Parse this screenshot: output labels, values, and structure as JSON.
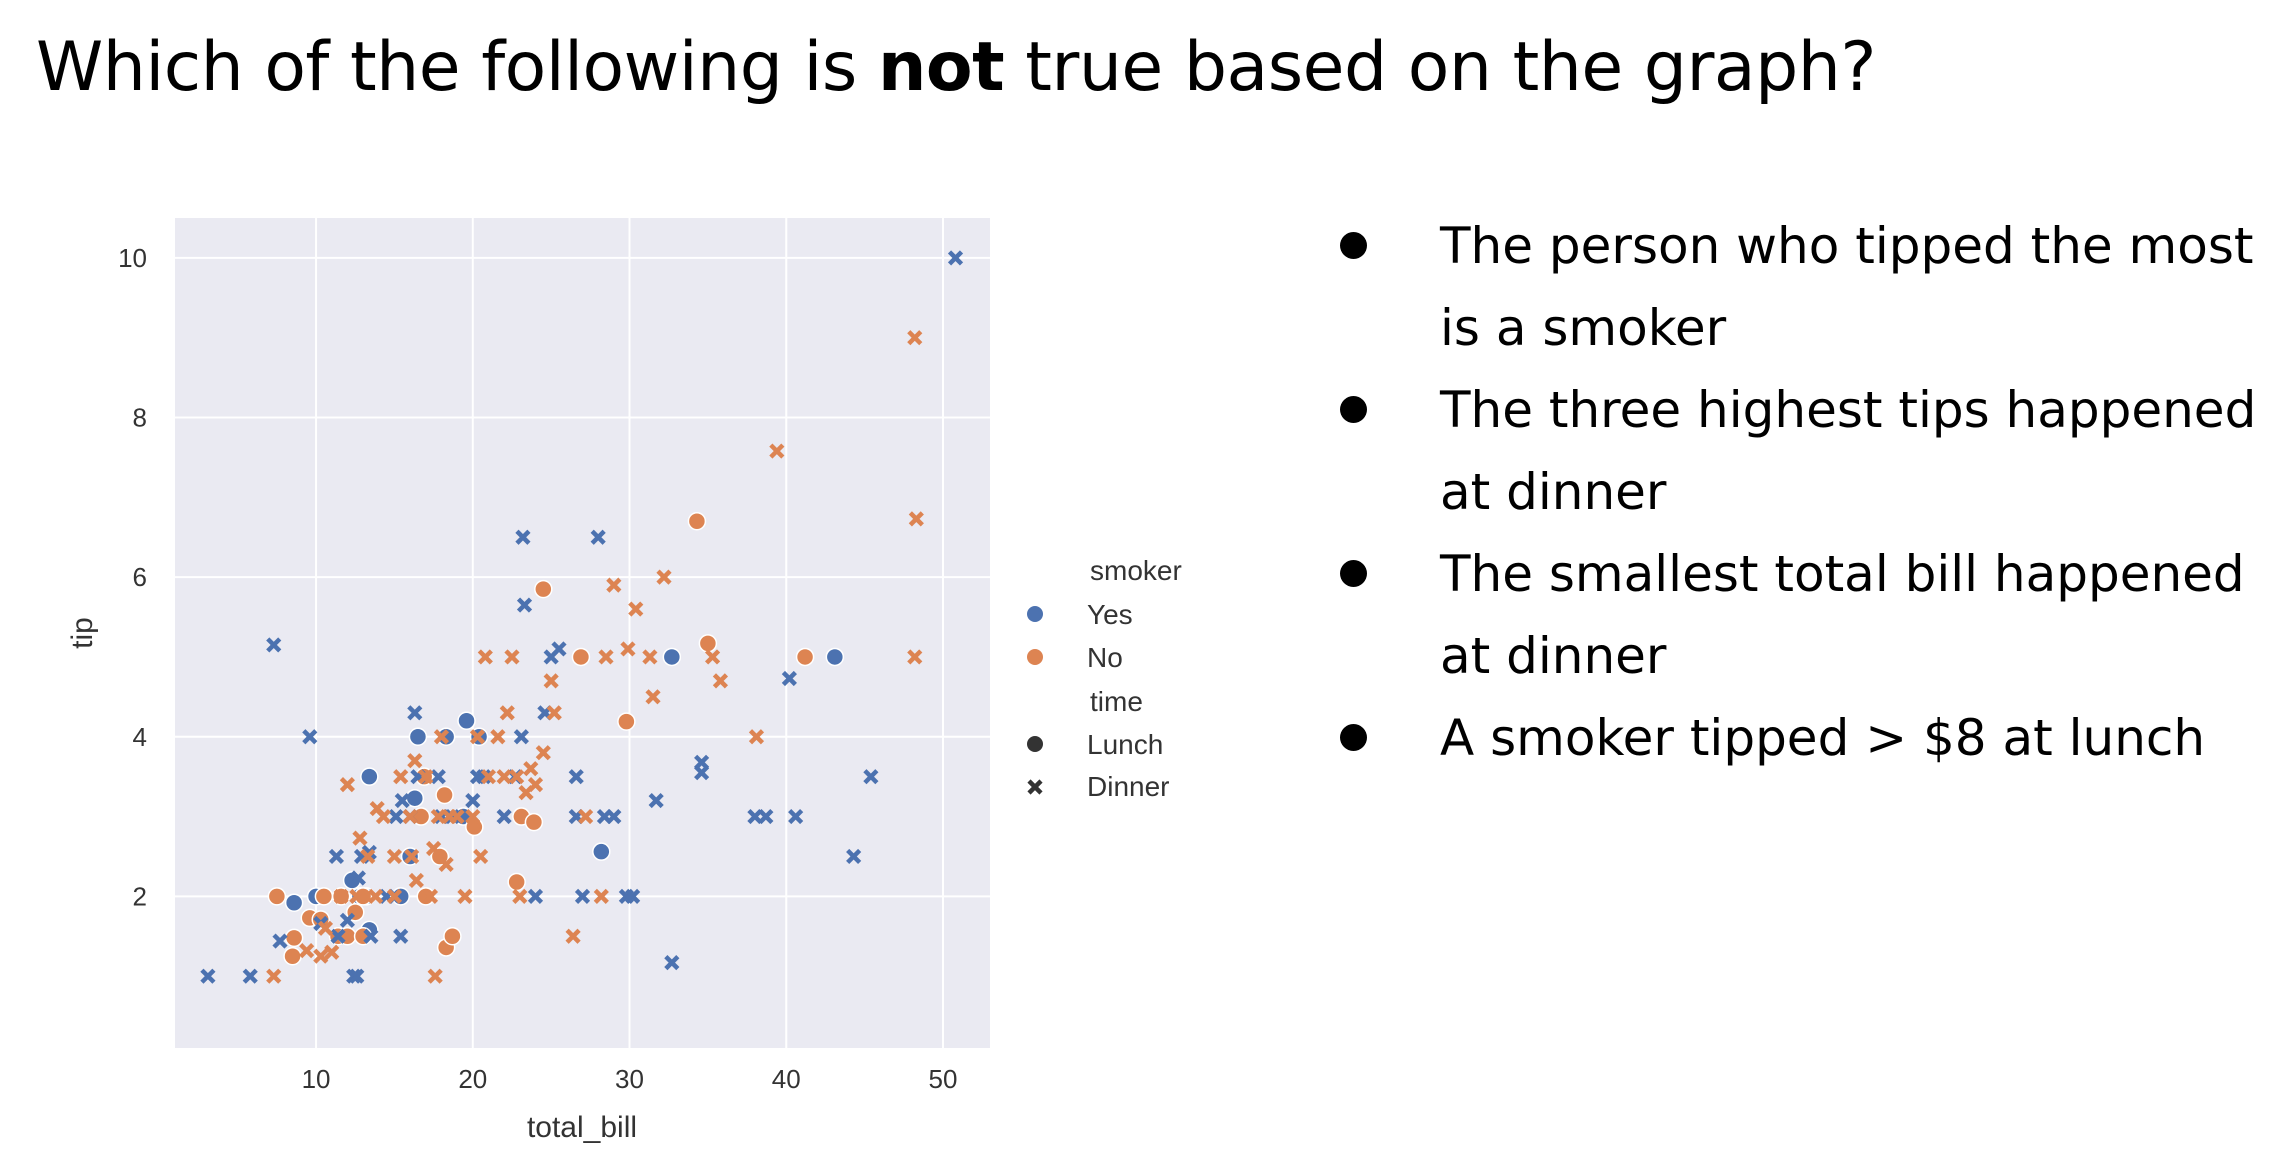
{
  "question": {
    "prefix": "Which of the following is ",
    "emphasis": "not",
    "suffix": " true based on the graph?"
  },
  "options": [
    "The person who tipped the most is a smoker",
    "The three highest tips happened at dinner",
    "The smallest total bill happened at dinner",
    "A smoker tipped > $8 at lunch"
  ],
  "colors": {
    "smoker_yes": "#4c72b0",
    "smoker_no": "#dd8452",
    "plot_bg": "#eaeaf2",
    "grid": "#ffffff"
  },
  "chart_data": {
    "type": "scatter",
    "xlabel": "total_bill",
    "ylabel": "tip",
    "xlim": [
      1,
      53
    ],
    "ylim": [
      0.1,
      10.5
    ],
    "xticks": [
      10,
      20,
      30,
      40,
      50
    ],
    "yticks": [
      2,
      4,
      6,
      8,
      10
    ],
    "grid": true,
    "legend": {
      "placement": "right",
      "hue_title": "smoker",
      "hue_items": [
        {
          "label": "Yes",
          "key": "Yes"
        },
        {
          "label": "No",
          "key": "No"
        }
      ],
      "style_title": "time",
      "style_items": [
        {
          "label": "Lunch",
          "key": "Lunch"
        },
        {
          "label": "Dinner",
          "key": "Dinner"
        }
      ]
    },
    "series": [
      {
        "smoker": "Yes",
        "time": "Lunch",
        "points": [
          [
            8.6,
            1.92
          ],
          [
            10.0,
            2.0
          ],
          [
            12.3,
            2.2
          ],
          [
            12.8,
            2.0
          ],
          [
            13.2,
            2.0
          ],
          [
            13.4,
            3.5
          ],
          [
            13.4,
            1.58
          ],
          [
            15.4,
            2.0
          ],
          [
            16.0,
            2.5
          ],
          [
            16.3,
            3.23
          ],
          [
            16.5,
            4.0
          ],
          [
            18.3,
            4.0
          ],
          [
            19.6,
            4.2
          ],
          [
            19.4,
            3.0
          ],
          [
            20.4,
            4.0
          ],
          [
            28.2,
            2.56
          ],
          [
            32.7,
            5.0
          ],
          [
            43.1,
            5.0
          ]
        ]
      },
      {
        "smoker": "No",
        "time": "Lunch",
        "points": [
          [
            7.5,
            2.0
          ],
          [
            8.5,
            1.25
          ],
          [
            8.6,
            1.48
          ],
          [
            9.6,
            1.73
          ],
          [
            10.3,
            1.71
          ],
          [
            10.5,
            2.0
          ],
          [
            11.4,
            1.5
          ],
          [
            11.6,
            2.0
          ],
          [
            12.0,
            1.5
          ],
          [
            12.5,
            1.8
          ],
          [
            13.0,
            2.0
          ],
          [
            13.0,
            1.5
          ],
          [
            16.9,
            3.5
          ],
          [
            17.0,
            2.0
          ],
          [
            18.2,
            3.27
          ],
          [
            18.3,
            1.36
          ],
          [
            18.7,
            1.5
          ],
          [
            20.1,
            2.87
          ],
          [
            24.5,
            5.85
          ],
          [
            26.9,
            5.0
          ],
          [
            29.8,
            4.19
          ],
          [
            34.3,
            6.7
          ],
          [
            35.0,
            5.17
          ],
          [
            41.2,
            5.0
          ],
          [
            17.9,
            2.5
          ],
          [
            22.8,
            2.18
          ],
          [
            23.1,
            3.0
          ],
          [
            23.9,
            2.93
          ],
          [
            16.7,
            3.0
          ]
        ]
      },
      {
        "smoker": "Yes",
        "time": "Dinner",
        "points": [
          [
            3.1,
            1.0
          ],
          [
            5.8,
            1.0
          ],
          [
            7.3,
            5.15
          ],
          [
            7.7,
            1.44
          ],
          [
            9.6,
            4.0
          ],
          [
            10.3,
            1.66
          ],
          [
            11.3,
            2.5
          ],
          [
            11.4,
            1.5
          ],
          [
            12.4,
            1.0
          ],
          [
            12.6,
            1.0
          ],
          [
            12.7,
            2.23
          ],
          [
            12.9,
            2.5
          ],
          [
            13.4,
            2.55
          ],
          [
            13.5,
            1.5
          ],
          [
            14.5,
            2.0
          ],
          [
            15.1,
            3.0
          ],
          [
            15.4,
            1.5
          ],
          [
            15.5,
            3.2
          ],
          [
            16.0,
            3.0
          ],
          [
            16.3,
            4.3
          ],
          [
            16.5,
            3.5
          ],
          [
            17.8,
            3.5
          ],
          [
            18.0,
            3.0
          ],
          [
            18.7,
            3.0
          ],
          [
            20.3,
            3.5
          ],
          [
            20.7,
            3.5
          ],
          [
            22.7,
            3.5
          ],
          [
            23.2,
            6.5
          ],
          [
            23.3,
            5.65
          ],
          [
            24.0,
            2.0
          ],
          [
            24.6,
            4.3
          ],
          [
            25.0,
            5.0
          ],
          [
            25.5,
            5.1
          ],
          [
            26.6,
            3.5
          ],
          [
            26.6,
            3.0
          ],
          [
            27.0,
            2.0
          ],
          [
            28.0,
            6.5
          ],
          [
            28.4,
            3.0
          ],
          [
            29.0,
            3.0
          ],
          [
            29.8,
            2.0
          ],
          [
            30.2,
            2.0
          ],
          [
            31.7,
            3.2
          ],
          [
            32.7,
            1.17
          ],
          [
            34.6,
            3.55
          ],
          [
            34.6,
            3.68
          ],
          [
            38.0,
            3.0
          ],
          [
            38.7,
            3.0
          ],
          [
            40.2,
            4.73
          ],
          [
            40.6,
            3.0
          ],
          [
            44.3,
            2.5
          ],
          [
            45.4,
            3.5
          ],
          [
            50.8,
            10.0
          ],
          [
            12.0,
            1.7
          ],
          [
            22.0,
            3.0
          ],
          [
            23.1,
            4.0
          ],
          [
            20.0,
            3.2
          ]
        ]
      },
      {
        "smoker": "No",
        "time": "Dinner",
        "points": [
          [
            7.3,
            1.0
          ],
          [
            9.4,
            1.32
          ],
          [
            10.3,
            1.25
          ],
          [
            10.6,
            1.6
          ],
          [
            11.0,
            1.3
          ],
          [
            11.6,
            2.0
          ],
          [
            12.0,
            3.4
          ],
          [
            12.6,
            2.0
          ],
          [
            13.3,
            2.5
          ],
          [
            13.8,
            2.0
          ],
          [
            14.3,
            3.0
          ],
          [
            15.0,
            2.0
          ],
          [
            15.4,
            3.5
          ],
          [
            16.0,
            3.0
          ],
          [
            16.3,
            3.7
          ],
          [
            16.4,
            2.2
          ],
          [
            17.0,
            3.5
          ],
          [
            17.3,
            2.0
          ],
          [
            17.5,
            2.6
          ],
          [
            17.8,
            3.0
          ],
          [
            18.0,
            4.0
          ],
          [
            18.3,
            2.4
          ],
          [
            18.5,
            3.0
          ],
          [
            19.0,
            3.0
          ],
          [
            19.5,
            2.0
          ],
          [
            20.0,
            3.0
          ],
          [
            20.3,
            4.0
          ],
          [
            20.5,
            2.5
          ],
          [
            21.0,
            3.5
          ],
          [
            21.6,
            4.0
          ],
          [
            22.0,
            3.5
          ],
          [
            22.2,
            4.3
          ],
          [
            22.5,
            5.0
          ],
          [
            22.8,
            3.5
          ],
          [
            23.4,
            3.3
          ],
          [
            23.7,
            3.6
          ],
          [
            24.0,
            3.4
          ],
          [
            24.5,
            3.8
          ],
          [
            25.0,
            4.7
          ],
          [
            25.2,
            4.3
          ],
          [
            26.4,
            1.5
          ],
          [
            27.2,
            3.0
          ],
          [
            28.2,
            2.0
          ],
          [
            28.5,
            5.0
          ],
          [
            29.0,
            5.9
          ],
          [
            29.9,
            5.1
          ],
          [
            30.4,
            5.6
          ],
          [
            31.3,
            5.0
          ],
          [
            31.5,
            4.5
          ],
          [
            32.2,
            6.0
          ],
          [
            35.3,
            5.0
          ],
          [
            35.8,
            4.7
          ],
          [
            38.1,
            4.0
          ],
          [
            39.4,
            7.58
          ],
          [
            48.2,
            9.0
          ],
          [
            48.3,
            6.73
          ],
          [
            48.2,
            5.0
          ],
          [
            20.8,
            5.0
          ],
          [
            23.0,
            2.0
          ],
          [
            17.6,
            1.0
          ],
          [
            15.0,
            2.5
          ],
          [
            12.8,
            2.73
          ],
          [
            13.9,
            3.1
          ],
          [
            16.1,
            2.5
          ]
        ]
      }
    ]
  }
}
